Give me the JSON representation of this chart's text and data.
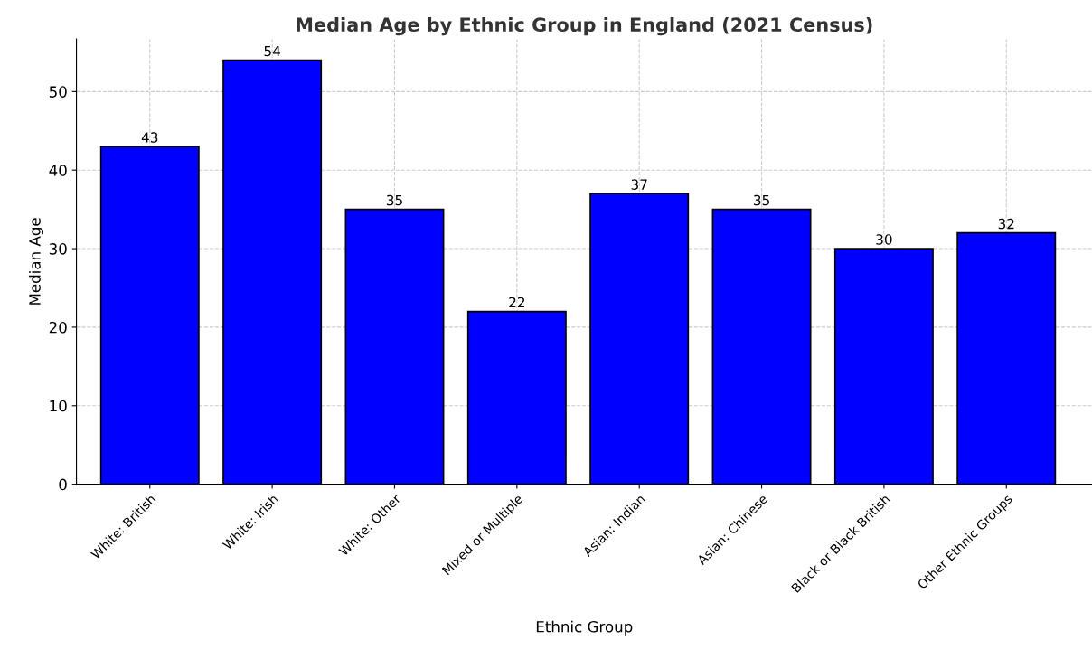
{
  "chart_data": {
    "type": "bar",
    "title": "Median Age by Ethnic Group in England (2021 Census)",
    "xlabel": "Ethnic Group",
    "ylabel": "Median Age",
    "categories": [
      "White: British",
      "White: Irish",
      "White: Other",
      "Mixed or Multiple",
      "Asian: Indian",
      "Asian: Chinese",
      "Black or Black British",
      "Other Ethnic Groups"
    ],
    "values": [
      43,
      54,
      35,
      22,
      37,
      35,
      30,
      32
    ],
    "color": "#0000ff",
    "ylim": [
      0,
      56.7
    ],
    "yticks": [
      0,
      10,
      20,
      30,
      40,
      50
    ],
    "grid": true,
    "data_labels": true
  }
}
